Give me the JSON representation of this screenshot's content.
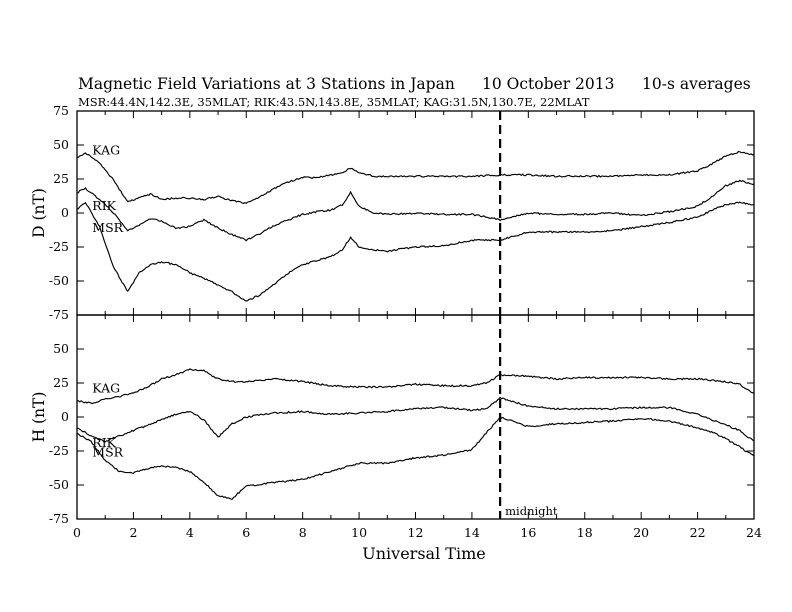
{
  "header": {
    "title": "Magnetic Field Variations at 3 Stations in Japan",
    "date": "10 October 2013",
    "averaging": "10-s averages",
    "stations_line": "MSR:44.4N,142.3E, 35MLAT;  RIK:43.5N,143.8E, 35MLAT;  KAG:31.5N,130.7E, 22MLAT"
  },
  "chart_data": [
    {
      "type": "line",
      "panel": "top",
      "ylabel": "D (nT)",
      "xlabel": "",
      "xlim": [
        0,
        24
      ],
      "ylim": [
        -75,
        75
      ],
      "x_ticks": [
        0,
        2,
        4,
        6,
        8,
        10,
        12,
        14,
        16,
        18,
        20,
        22,
        24
      ],
      "y_ticks": [
        -75,
        -50,
        -25,
        0,
        25,
        50,
        75
      ],
      "y_tick_labels": [
        "-75",
        "-50",
        "-25",
        "0",
        "25",
        "50",
        "75"
      ],
      "vline": {
        "x": 15,
        "label": ""
      },
      "series": [
        {
          "name": "KAG",
          "label_at": [
            0.4,
            46
          ],
          "x": [
            0,
            0.3,
            0.8,
            1.3,
            1.8,
            2.2,
            2.6,
            3.0,
            3.5,
            4.0,
            4.5,
            5.0,
            5.5,
            6.0,
            6.5,
            7.0,
            7.5,
            8.0,
            8.5,
            9.0,
            9.4,
            9.7,
            10.0,
            10.5,
            11,
            12,
            13,
            14,
            15,
            16,
            17,
            18,
            19,
            20,
            21,
            22,
            22.5,
            23,
            23.5,
            24
          ],
          "y": [
            41,
            44,
            37,
            24,
            8,
            11,
            14,
            10,
            11,
            11,
            10,
            12,
            9,
            7,
            12,
            18,
            23,
            26,
            26,
            28,
            30,
            33,
            30,
            27,
            27,
            27,
            27,
            27,
            28,
            28,
            27,
            27,
            27,
            28,
            28,
            31,
            36,
            42,
            45,
            43
          ]
        },
        {
          "name": "RIK",
          "label_at": [
            0.4,
            5
          ],
          "x": [
            0,
            0.3,
            0.8,
            1.3,
            1.8,
            2.2,
            2.6,
            3.0,
            3.5,
            4.0,
            4.5,
            5.0,
            5.5,
            6.0,
            6.5,
            7.0,
            7.5,
            8.0,
            8.5,
            9.0,
            9.4,
            9.7,
            10.0,
            10.5,
            11,
            12,
            13,
            14,
            15,
            16,
            17,
            18,
            19,
            20,
            21,
            22,
            22.5,
            23,
            23.5,
            24
          ],
          "y": [
            15,
            18,
            10,
            0,
            -13,
            -9,
            -4,
            -6,
            -11,
            -10,
            -5,
            -11,
            -16,
            -20,
            -15,
            -9,
            -5,
            -1,
            1,
            2,
            6,
            15,
            5,
            0,
            -1,
            0,
            -1,
            -1,
            -5,
            0,
            -1,
            -1,
            0,
            -2,
            1,
            5,
            12,
            20,
            24,
            21
          ]
        },
        {
          "name": "MSR",
          "label_at": [
            0.4,
            -11
          ],
          "x": [
            0,
            0.3,
            0.8,
            1.3,
            1.8,
            2.2,
            2.6,
            3.0,
            3.5,
            4.0,
            4.5,
            5.0,
            5.5,
            6.0,
            6.5,
            7.0,
            7.5,
            8.0,
            8.5,
            9.0,
            9.4,
            9.7,
            10.0,
            10.5,
            11,
            12,
            13,
            14,
            15,
            16,
            17,
            18,
            19,
            20,
            21,
            22,
            22.5,
            23,
            23.5,
            24
          ],
          "y": [
            3,
            8,
            -10,
            -40,
            -58,
            -44,
            -38,
            -36,
            -38,
            -44,
            -48,
            -53,
            -58,
            -65,
            -60,
            -52,
            -44,
            -38,
            -35,
            -32,
            -27,
            -18,
            -25,
            -27,
            -28,
            -25,
            -24,
            -20,
            -20,
            -14,
            -14,
            -14,
            -13,
            -10,
            -7,
            -3,
            2,
            6,
            8,
            6
          ]
        }
      ]
    },
    {
      "type": "line",
      "panel": "bottom",
      "ylabel": "H (nT)",
      "xlabel": "Universal Time",
      "xlim": [
        0,
        24
      ],
      "ylim": [
        -75,
        75
      ],
      "x_ticks": [
        0,
        2,
        4,
        6,
        8,
        10,
        12,
        14,
        16,
        18,
        20,
        22,
        24
      ],
      "x_tick_labels": [
        "0",
        "2",
        "4",
        "6",
        "8",
        "10",
        "12",
        "14",
        "16",
        "18",
        "20",
        "22",
        "24"
      ],
      "y_ticks": [
        -75,
        -50,
        -25,
        0,
        25,
        50
      ],
      "y_tick_labels": [
        "-75",
        "-50",
        "-25",
        "0",
        "25",
        "50"
      ],
      "vline": {
        "x": 15,
        "label": "midnight"
      },
      "series": [
        {
          "name": "KAG",
          "label_at": [
            0.4,
            21
          ],
          "x": [
            0,
            0.5,
            1.0,
            1.5,
            2.0,
            2.5,
            3.0,
            3.5,
            4.0,
            4.5,
            5.0,
            5.5,
            6.0,
            7,
            8,
            9,
            10,
            11,
            12,
            13,
            14,
            14.5,
            15,
            16,
            17,
            18,
            19,
            20,
            21,
            22,
            22.5,
            23,
            23.5,
            24
          ],
          "y": [
            12,
            10,
            13,
            15,
            18,
            22,
            28,
            31,
            35,
            34,
            28,
            26,
            26,
            28,
            26,
            23,
            22,
            22,
            24,
            23,
            23,
            25,
            31,
            30,
            28,
            29,
            29,
            29,
            28,
            28,
            27,
            26,
            24,
            17
          ]
        },
        {
          "name": "RIK",
          "label_at": [
            0.4,
            -19
          ],
          "x": [
            0,
            0.5,
            1.0,
            1.5,
            2.0,
            2.5,
            3.0,
            3.5,
            4.0,
            4.5,
            5.0,
            5.5,
            6.0,
            7,
            8,
            9,
            10,
            11,
            12,
            13,
            14,
            14.5,
            15,
            16,
            17,
            18,
            19,
            20,
            21,
            22,
            22.5,
            23,
            23.5,
            24
          ],
          "y": [
            -8,
            -14,
            -18,
            -14,
            -10,
            -6,
            -2,
            2,
            4,
            -2,
            -15,
            -5,
            0,
            3,
            4,
            2,
            3,
            4,
            6,
            7,
            5,
            6,
            14,
            8,
            6,
            6,
            6,
            7,
            7,
            2,
            -2,
            -6,
            -10,
            -18
          ]
        },
        {
          "name": "MSR",
          "label_at": [
            0.4,
            -26
          ],
          "x": [
            0,
            0.5,
            1.0,
            1.5,
            2.0,
            2.5,
            3.0,
            3.5,
            4.0,
            4.5,
            5.0,
            5.5,
            6.0,
            7,
            8,
            9,
            10,
            11,
            12,
            13,
            14,
            14.5,
            15,
            16,
            17,
            18,
            19,
            20,
            21,
            22,
            22.5,
            23,
            23.5,
            24
          ],
          "y": [
            -12,
            -18,
            -32,
            -40,
            -41,
            -38,
            -36,
            -37,
            -40,
            -48,
            -58,
            -60,
            -51,
            -48,
            -46,
            -40,
            -34,
            -34,
            -30,
            -28,
            -24,
            -12,
            0,
            -7,
            -5,
            -4,
            -3,
            -1,
            -3,
            -8,
            -11,
            -16,
            -22,
            -29
          ]
        }
      ]
    }
  ]
}
